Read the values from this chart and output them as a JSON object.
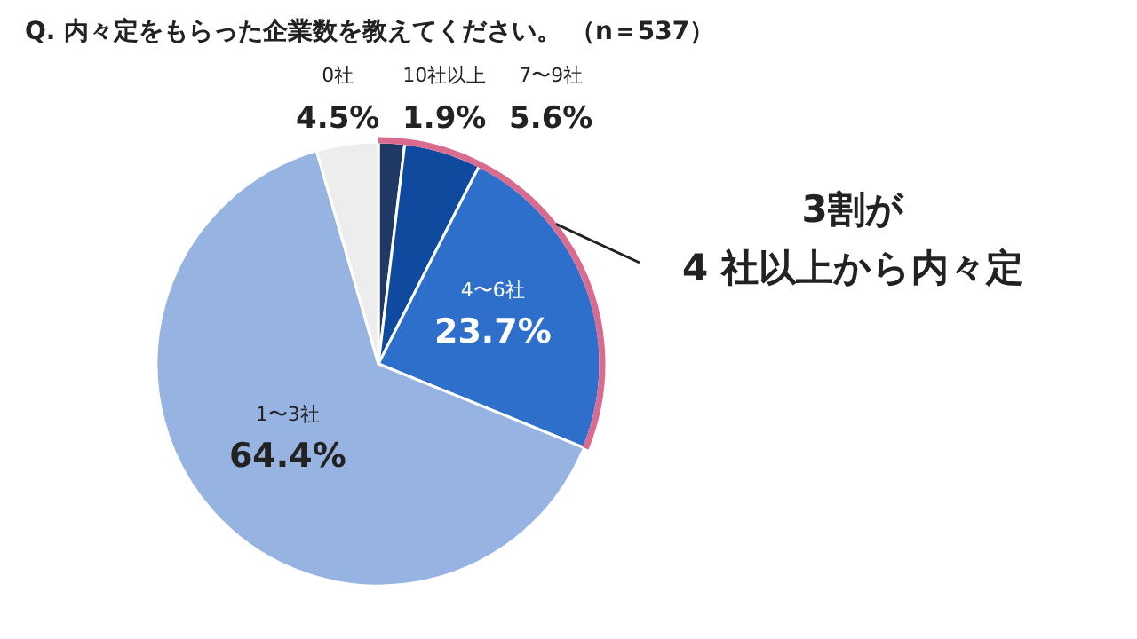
{
  "chart_data": {
    "type": "pie",
    "title": "Q. 内々定をもらった企業数を教えてください。 （n＝537）",
    "categories": [
      "10社以上",
      "7〜9社",
      "4〜6社",
      "1〜3社",
      "0社"
    ],
    "values": [
      1.9,
      5.6,
      23.7,
      64.4,
      4.5
    ],
    "colors": [
      "#1f3864",
      "#0f4a9e",
      "#2e6fcc",
      "#97b3e2",
      "#ededed"
    ],
    "value_labels": [
      "1.9%",
      "5.6%",
      "23.7%",
      "64.4%",
      "4.5%"
    ],
    "annotations": [
      "3割が\n4 社以上から内々定"
    ]
  }
}
